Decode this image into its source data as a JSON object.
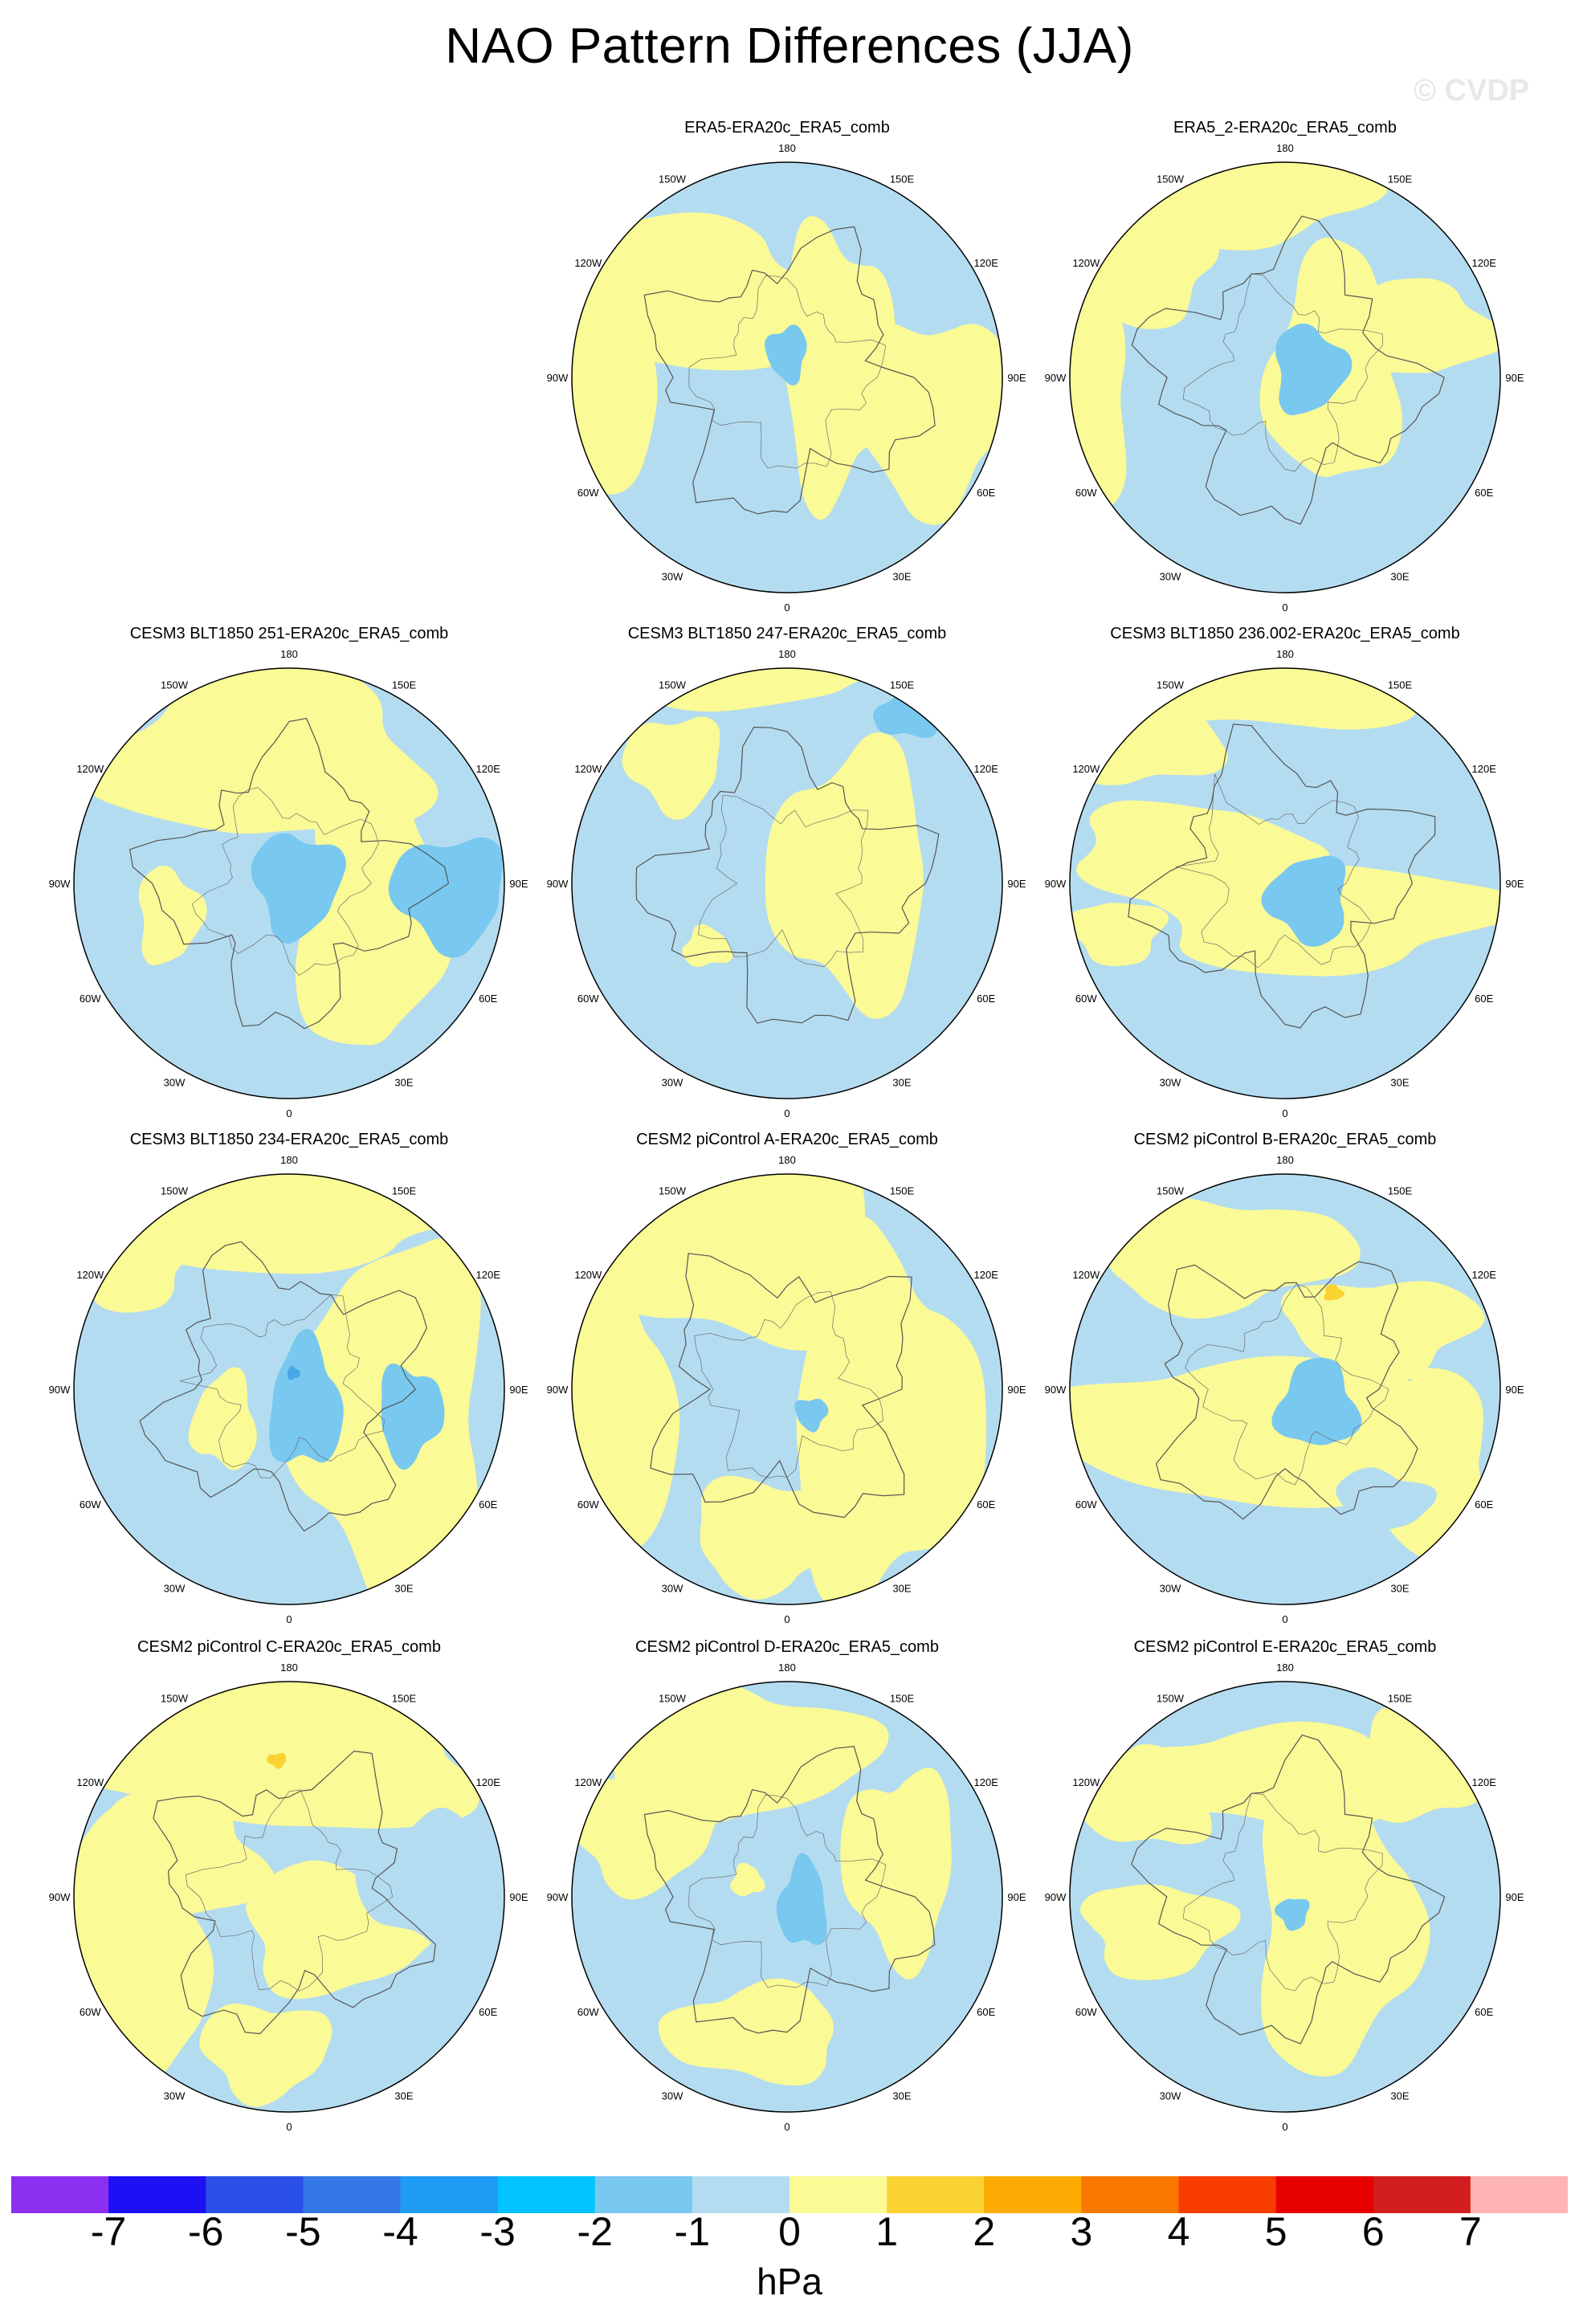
{
  "title": "NAO Pattern Differences (JJA)",
  "watermark": "© CVDP",
  "lon_labels": [
    "180",
    "150E",
    "120E",
    "90E",
    "60E",
    "30E",
    "0",
    "30W",
    "60W",
    "90W",
    "120W",
    "150W"
  ],
  "panels": [
    {
      "title": "ERA5-ERA20c_ERA5_comb",
      "variant": 0
    },
    {
      "title": "ERA5_2-ERA20c_ERA5_comb",
      "variant": 1
    },
    {
      "title": "CESM3 BLT1850 251-ERA20c_ERA5_comb",
      "variant": 2
    },
    {
      "title": "CESM3 BLT1850 247-ERA20c_ERA5_comb",
      "variant": 3
    },
    {
      "title": "CESM3 BLT1850 236.002-ERA20c_ERA5_comb",
      "variant": 4
    },
    {
      "title": "CESM3 BLT1850 234-ERA20c_ERA5_comb",
      "variant": 5
    },
    {
      "title": "CESM2 piControl A-ERA20c_ERA5_comb",
      "variant": 6
    },
    {
      "title": "CESM2 piControl B-ERA20c_ERA5_comb",
      "variant": 7
    },
    {
      "title": "CESM2 piControl C-ERA20c_ERA5_comb",
      "variant": 8
    },
    {
      "title": "CESM2 piControl D-ERA20c_ERA5_comb",
      "variant": 9
    },
    {
      "title": "CESM2 piControl E-ERA20c_ERA5_comb",
      "variant": 10
    }
  ],
  "colorbar": {
    "unit": "hPa",
    "ticks": [
      "-7",
      "-6",
      "-5",
      "-4",
      "-3",
      "-2",
      "-1",
      "0",
      "1",
      "2",
      "3",
      "4",
      "5",
      "6",
      "7"
    ],
    "colors": [
      "#8c2ff0",
      "#1e10f5",
      "#2a50e8",
      "#3378e6",
      "#1e9bf5",
      "#00c3ff",
      "#78c8f0",
      "#b4dcf0",
      "#fafa96",
      "#fad232",
      "#faaa00",
      "#fa7800",
      "#fa3c00",
      "#e60000",
      "#d21e1e",
      "#ffb4b4"
    ]
  }
}
